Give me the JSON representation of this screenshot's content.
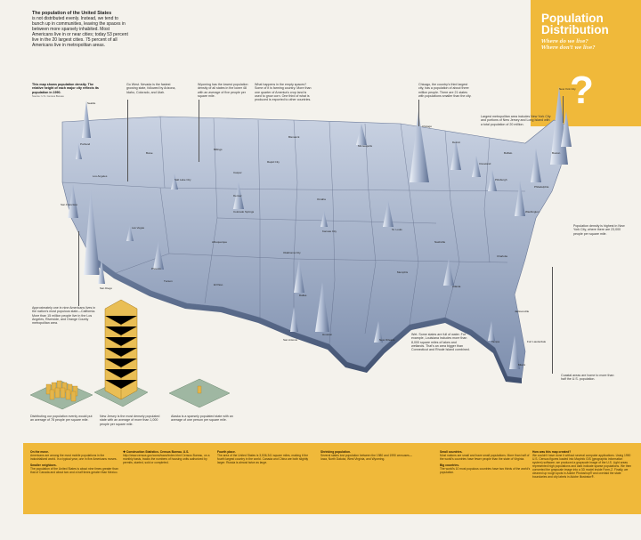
{
  "intro": {
    "title": "The population of the United States",
    "text": "is not distributed evenly. Instead, we tend to bunch up in communities, leaving the spaces in between more sparsely inhabited. Most Americans live in or near cities; today 53 percent live in the 20 largest cities. 75 percent of all Americans live in metropolitan areas."
  },
  "panel": {
    "title_line1": "Population",
    "title_line2": "Distribution",
    "sub_line1": "Where do we live?",
    "sub_line2": "Where don't we live?",
    "mark": "?"
  },
  "annotations": {
    "map_note_title": "This map shows population density. The relative height of each major city reflects its population in 1990.",
    "map_note_source": "Source: U.S. Census Bureau",
    "go_west": "Go West. Nevada is the fastest growing state, followed by Arizona, Idaho, Colorado, and Utah.",
    "wyoming": "Wyoming has the lowest population density of all states in the lower 48 with an average of five people per square mile.",
    "empty": "What happens in the empty spaces? Some of it is farming country. More than one quarter of America's crop land is used to grow corn. One third of what is produced is exported to other countries.",
    "chicago": "Chicago, the country's third largest city, has a population of about three million people. There are 21 states with populations smaller than the city.",
    "metro": "Largest metropolitan area includes New York City and portions of New Jersey and Long Island with a total population of 20 million.",
    "density": "Population density is highest in New York City, where there are 23,000 people per square mile.",
    "nine": "Approximately one in nine Americans lives in the nation's most populous state—California. More than 15 million people live in the Los Angeles, Riverside, and Orange County metropolitan area.",
    "wet": "Wet. Some states are full of water. For example, Louisiana includes more than 8,000 square miles of lakes and wetlands. That's an area bigger than Connecticut and Rhode Island combined.",
    "coastal": "Coastal areas are home to more than half the U.S. population.",
    "distributing": "Distributing our population evenly would put an average of 78 people per square mile.",
    "new_jersey": "New Jersey is the most densely populated state with an average of more than 1,000 people per square mile.",
    "alaska": "Alaska is a sparsely populated state with an average of one person per square mile."
  },
  "cities": [
    {
      "name": "Seattle"
    },
    {
      "name": "Portland"
    },
    {
      "name": "San Francisco"
    },
    {
      "name": "Los Angeles"
    },
    {
      "name": "San Diego"
    },
    {
      "name": "Las Vegas"
    },
    {
      "name": "Phoenix"
    },
    {
      "name": "Tucson"
    },
    {
      "name": "Salt Lake City"
    },
    {
      "name": "Denver"
    },
    {
      "name": "Colorado Springs"
    },
    {
      "name": "Albuquerque"
    },
    {
      "name": "El Paso"
    },
    {
      "name": "Billings"
    },
    {
      "name": "Casper"
    },
    {
      "name": "Boise"
    },
    {
      "name": "Bismarck"
    },
    {
      "name": "Rapid City"
    },
    {
      "name": "Omaha"
    },
    {
      "name": "Kansas City"
    },
    {
      "name": "Oklahoma City"
    },
    {
      "name": "Dallas"
    },
    {
      "name": "Houston"
    },
    {
      "name": "San Antonio"
    },
    {
      "name": "Minneapolis"
    },
    {
      "name": "Chicago"
    },
    {
      "name": "Detroit"
    },
    {
      "name": "St. Louis"
    },
    {
      "name": "Memphis"
    },
    {
      "name": "New Orleans"
    },
    {
      "name": "Atlanta"
    },
    {
      "name": "Miami"
    },
    {
      "name": "Fort Lauderdale"
    },
    {
      "name": "Tampa"
    },
    {
      "name": "Jacksonville"
    },
    {
      "name": "Charlotte"
    },
    {
      "name": "Washington"
    },
    {
      "name": "Philadelphia"
    },
    {
      "name": "Boston"
    },
    {
      "name": "Cleveland"
    },
    {
      "name": "Pittsburgh"
    },
    {
      "name": "Buffalo"
    },
    {
      "name": "Nashville"
    },
    {
      "name": "New York City"
    }
  ],
  "bottom": {
    "col1_h1": "On the move.",
    "col1_t1": "Americans are among the most mobile populations in the industrialized world. In a typical year, one in five Americans moves.",
    "col1_h2": "Smaller neighbors.",
    "col1_t2": "The population of the United States is about nine times greater than that of Canada and about two and a half times greater than Mexico.",
    "col2_h": "Construction Statistics. Census Bureau. U.S.",
    "col2_t": "http://www.census.gov/const/www/index.html Census Bureau, on a monthly basis, tracks the numbers of housing units authorized by permits, started, sold or completed.",
    "col3_h": "Fourth place.",
    "col3_t": "The area of the United States is 3,536,341 square miles, making it the fourth largest country in the world. Canada and China are both slightly larger. Russia is almost twice as large.",
    "col4_h": "Shrinking population.",
    "col4_t": "Several states lost population between the 1980 and 1990 censuses—Iowa, North Dakota, West Virginia, and Wyoming.",
    "col5_h1": "Small countries.",
    "col5_t1": "Most nations are small and have small populations. More than half of the world's countries have fewer people than the state of Virginia.",
    "col5_h2": "Big countries.",
    "col5_t2": "The world's 10 most populous countries have two thirds of the world's population.",
    "col6_h": "How was this map created?",
    "col6_t": "We couldn't have done it without several computer applications. Using 1990 U.S. Census figures loaded into MapInfo GIS (geographic information system) software, we produced a grayscale image of the U.S. Light areas represented high populations and dark indicate sparse populations. We then converted the grayscale image into a 3D model inside Form-Z. Finally, we cleaned up rough spots in Adobe Photoshop® and overlaid the state boundaries and city labels in Adobe Illustrator®."
  }
}
